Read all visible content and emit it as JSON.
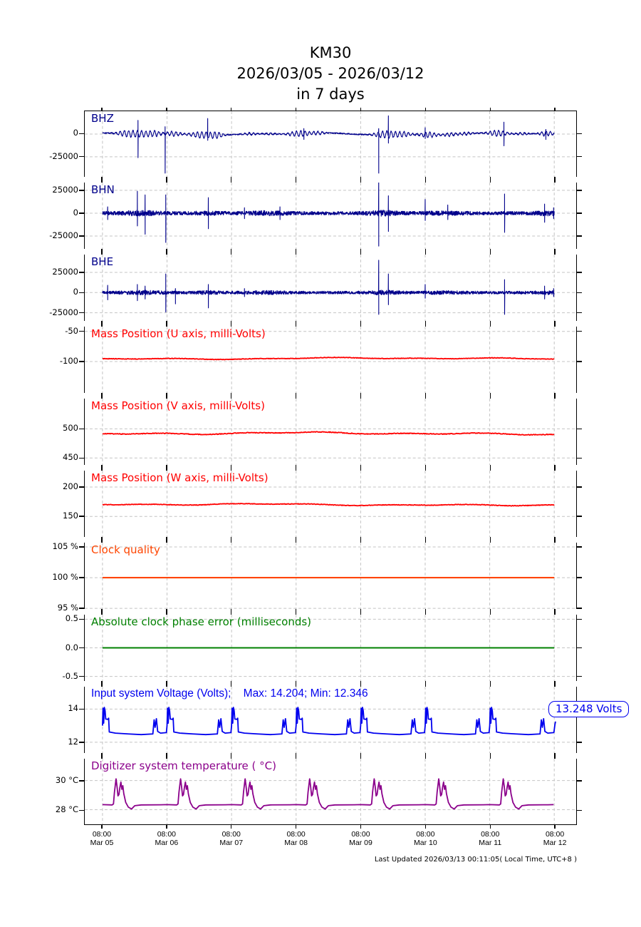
{
  "title": {
    "station": "KM30",
    "range": "2026/03/05 - 2026/03/12",
    "span": "in 7 days"
  },
  "footer": {
    "text": "Last Updated 2026/03/13 00:11:05( Local Time, UTC+8 )"
  },
  "annotation": {
    "text": "13.248 Volts",
    "value": 13.248,
    "unit": "Volts",
    "color": "#0000EE"
  },
  "x_axis": {
    "domain": [
      -0.275,
      7.34
    ],
    "tick_positions": [
      0,
      1,
      2,
      3,
      4,
      5,
      6,
      7
    ],
    "tick_labels": [
      {
        "time": "08:00",
        "date": "Mar 05"
      },
      {
        "time": "08:00",
        "date": "Mar 06"
      },
      {
        "time": "08:00",
        "date": "Mar 07"
      },
      {
        "time": "08:00",
        "date": "Mar 08"
      },
      {
        "time": "08:00",
        "date": "Mar 09"
      },
      {
        "time": "08:00",
        "date": "Mar 10"
      },
      {
        "time": "08:00",
        "date": "Mar 11"
      },
      {
        "time": "08:00",
        "date": "Mar 12"
      }
    ]
  },
  "chart_data": {
    "type": "line",
    "title": "KM30 2026/03/05 - 2026/03/12 in 7 days",
    "x_unit": "days since 2026/03/05 08:00",
    "grid": true,
    "panels": [
      {
        "id": "bhz",
        "label": "BHZ",
        "color": "#00008B",
        "ylim": [
          -47000,
          25000
        ],
        "yticks": [
          {
            "v": 0,
            "label": "0"
          },
          {
            "v": -25000,
            "label": "-25000"
          }
        ],
        "series": {
          "kind": "seismic",
          "base": 0,
          "noise": 650,
          "freq": 15,
          "slow": [
            [
              2.1,
              800
            ],
            [
              5.3,
              500
            ]
          ],
          "wiggles": [
            [
              0.35,
              0.15,
              2600
            ],
            [
              0.6,
              0.2,
              3200
            ],
            [
              0.82,
              0.1,
              2200
            ],
            [
              1.1,
              0.12,
              2600
            ],
            [
              1.55,
              0.2,
              3600
            ],
            [
              1.78,
              0.1,
              2600
            ],
            [
              2.28,
              0.12,
              1300
            ],
            [
              2.6,
              0.1,
              900
            ],
            [
              3.05,
              0.18,
              3100
            ],
            [
              3.35,
              0.1,
              1600
            ],
            [
              4.4,
              0.2,
              3900
            ],
            [
              4.68,
              0.12,
              2300
            ],
            [
              5.05,
              0.15,
              2900
            ],
            [
              5.38,
              0.1,
              1900
            ],
            [
              5.62,
              0.12,
              1600
            ],
            [
              6.12,
              0.15,
              3300
            ],
            [
              6.5,
              0.1,
              1300
            ],
            [
              6.88,
              0.12,
              2700
            ]
          ],
          "spikes": [
            [
              0.55,
              15000,
              -26000
            ],
            [
              0.97,
              8000,
              -43000
            ],
            [
              1.63,
              17000,
              -7000
            ],
            [
              3.12,
              6000,
              -6000
            ],
            [
              4.28,
              6000,
              -43000
            ],
            [
              4.43,
              20000,
              -10000
            ],
            [
              5.0,
              7000,
              -5000
            ],
            [
              6.22,
              13000,
              -13000
            ],
            [
              6.87,
              5000,
              -6000
            ]
          ]
        }
      },
      {
        "id": "bhn",
        "label": "BHN",
        "color": "#00008B",
        "ylim": [
          -39000,
          33500
        ],
        "yticks": [
          {
            "v": 25000,
            "label": "25000"
          },
          {
            "v": 0,
            "label": "0"
          },
          {
            "v": -25000,
            "label": "-25000"
          }
        ],
        "series": {
          "kind": "seismic",
          "base": 0,
          "noise": 1900,
          "freq": 0,
          "bands": [
            [
              0.6,
              0.3,
              0.7
            ],
            [
              1.65,
              0.2,
              0.5
            ],
            [
              2.55,
              0.3,
              0.6
            ],
            [
              4.35,
              0.25,
              0.8
            ],
            [
              5.3,
              0.3,
              0.4
            ],
            [
              6.9,
              0.2,
              0.6
            ]
          ],
          "spikes": [
            [
              0.08,
              7000,
              -7000
            ],
            [
              0.54,
              24000,
              -14000
            ],
            [
              0.66,
              20000,
              -23000
            ],
            [
              0.98,
              20000,
              -32000
            ],
            [
              1.64,
              17000,
              -17000
            ],
            [
              2.2,
              6000,
              -6000
            ],
            [
              2.75,
              7000,
              -7000
            ],
            [
              4.28,
              35000,
              -36000
            ],
            [
              4.43,
              19000,
              -20000
            ],
            [
              5.0,
              15000,
              -8000
            ],
            [
              5.35,
              9000,
              -7000
            ],
            [
              6.23,
              21000,
              -21000
            ],
            [
              6.85,
              10000,
              -10000
            ],
            [
              6.99,
              6000,
              -6000
            ]
          ]
        }
      },
      {
        "id": "bhe",
        "label": "BHE",
        "color": "#00008B",
        "ylim": [
          -35000,
          47000
        ],
        "yticks": [
          {
            "v": 25000,
            "label": "25000"
          },
          {
            "v": 0,
            "label": "0"
          },
          {
            "v": -25000,
            "label": "-25000"
          }
        ],
        "series": {
          "kind": "seismic",
          "base": 0,
          "noise": 1800,
          "freq": 0,
          "bands": [
            [
              0.6,
              0.3,
              0.6
            ],
            [
              1.65,
              0.2,
              0.5
            ],
            [
              2.55,
              0.3,
              0.5
            ],
            [
              4.35,
              0.25,
              0.7
            ],
            [
              5.3,
              0.3,
              0.4
            ],
            [
              6.9,
              0.2,
              0.5
            ]
          ],
          "spikes": [
            [
              0.08,
              9000,
              -9000
            ],
            [
              0.54,
              10000,
              -10000
            ],
            [
              0.66,
              8000,
              -8000
            ],
            [
              0.98,
              23000,
              -24000
            ],
            [
              1.13,
              5000,
              -14000
            ],
            [
              1.64,
              10000,
              -19000
            ],
            [
              2.2,
              5000,
              -5000
            ],
            [
              4.28,
              40000,
              -27000
            ],
            [
              4.43,
              23000,
              -15000
            ],
            [
              5.0,
              10000,
              -7000
            ],
            [
              6.23,
              16000,
              -27000
            ],
            [
              6.85,
              8000,
              -8000
            ],
            [
              6.99,
              5000,
              -5000
            ]
          ]
        }
      },
      {
        "id": "mass-u",
        "label": "Mass Position (U axis, milli-Volts)",
        "color": "#FF0000",
        "ylim": [
          -152,
          -42
        ],
        "yticks": [
          {
            "v": -50,
            "label": "-50"
          },
          {
            "v": -100,
            "label": "-100"
          }
        ],
        "series": {
          "kind": "wander",
          "base": -95,
          "fuzz": 0.9,
          "waves": [
            [
              0.9,
              0.8
            ],
            [
              2.3,
              0.7
            ],
            [
              5.1,
              0.5
            ]
          ]
        }
      },
      {
        "id": "mass-v",
        "label": "Mass Position (V axis, milli-Volts)",
        "color": "#FF0000",
        "ylim": [
          438,
          552
        ],
        "yticks": [
          {
            "v": 500,
            "label": "500"
          },
          {
            "v": 450,
            "label": "450"
          }
        ],
        "series": {
          "kind": "wander",
          "base": 492,
          "fuzz": 1.2,
          "waves": [
            [
              0.9,
              1.2
            ],
            [
              2.3,
              1.0
            ],
            [
              5.1,
              0.8
            ]
          ]
        }
      },
      {
        "id": "mass-w",
        "label": "Mass Position (W axis, milli-Volts)",
        "color": "#FF0000",
        "ylim": [
          115,
          228
        ],
        "yticks": [
          {
            "v": 200,
            "label": "200"
          },
          {
            "v": 150,
            "label": "150"
          }
        ],
        "series": {
          "kind": "wander",
          "base": 170,
          "fuzz": 1.0,
          "waves": [
            [
              0.9,
              0.9
            ],
            [
              2.3,
              0.8
            ],
            [
              5.1,
              0.6
            ]
          ]
        }
      },
      {
        "id": "clock-quality",
        "label": "Clock quality",
        "color": "#FF4500",
        "ylim": [
          94.9,
          105.7
        ],
        "yticks": [
          {
            "v": 105,
            "label": "105 %"
          },
          {
            "v": 100,
            "label": "100 %"
          },
          {
            "v": 95,
            "label": "95 %"
          }
        ],
        "series": {
          "kind": "flat",
          "value": 100
        }
      },
      {
        "id": "clock-phase",
        "label": "Absolute clock phase error (milliseconds)",
        "color": "#008000",
        "ylim": [
          -0.58,
          0.58
        ],
        "yticks": [
          {
            "v": 0.5,
            "label": "0.5"
          },
          {
            "v": 0.0,
            "label": "0.0"
          },
          {
            "v": -0.5,
            "label": "-0.5"
          }
        ],
        "series": {
          "kind": "flat",
          "value": 0
        }
      },
      {
        "id": "voltage",
        "label": "Input system Voltage (Volts);    Max: 14.204; Min: 12.346",
        "color": "#0000EE",
        "ylim": [
          11.35,
          15.35
        ],
        "yticks": [
          {
            "v": 14,
            "label": "14"
          },
          {
            "v": 12,
            "label": "12"
          }
        ],
        "series": {
          "kind": "daily",
          "days": 7,
          "max": 14.204,
          "min": 12.346,
          "pattern": [
            [
              0.0,
              13.0
            ],
            [
              0.008,
              14.05
            ],
            [
              0.018,
              13.15
            ],
            [
              0.028,
              14.1
            ],
            [
              0.04,
              13.9
            ],
            [
              0.05,
              13.4
            ],
            [
              0.085,
              13.38
            ],
            [
              0.095,
              13.45
            ],
            [
              0.105,
              12.62
            ],
            [
              0.2,
              12.55
            ],
            [
              0.4,
              12.5
            ],
            [
              0.6,
              12.46
            ],
            [
              0.78,
              12.5
            ],
            [
              0.8,
              13.35
            ],
            [
              0.815,
              12.9
            ],
            [
              0.835,
              13.42
            ],
            [
              0.855,
              12.65
            ],
            [
              0.9,
              12.55
            ],
            [
              0.99,
              12.58
            ]
          ],
          "tail": [
            [
              6.995,
              12.6
            ],
            [
              7.01,
              13.05
            ],
            [
              7.02,
              13.248
            ]
          ]
        }
      },
      {
        "id": "temperature",
        "label": "Digitizer system temperature ( °C)",
        "color": "#8B008B",
        "ylim": [
          27.0,
          31.5
        ],
        "yticks": [
          {
            "v": 30,
            "label": "30 °C"
          },
          {
            "v": 28,
            "label": "28 °C"
          }
        ],
        "series": {
          "kind": "daily",
          "days": 7,
          "pattern": [
            [
              0.0,
              28.35
            ],
            [
              0.15,
              28.33
            ],
            [
              0.17,
              28.4
            ],
            [
              0.185,
              29.2
            ],
            [
              0.21,
              30.12
            ],
            [
              0.225,
              29.6
            ],
            [
              0.24,
              28.95
            ],
            [
              0.255,
              29.05
            ],
            [
              0.27,
              29.55
            ],
            [
              0.285,
              29.9
            ],
            [
              0.3,
              29.4
            ],
            [
              0.315,
              29.65
            ],
            [
              0.33,
              29.1
            ],
            [
              0.36,
              28.5
            ],
            [
              0.4,
              28.18
            ],
            [
              0.45,
              28.05
            ],
            [
              0.5,
              28.28
            ],
            [
              0.6,
              28.33
            ],
            [
              0.9,
              28.34
            ]
          ],
          "tail": [
            [
              6.99,
              28.35
            ]
          ]
        }
      }
    ]
  }
}
